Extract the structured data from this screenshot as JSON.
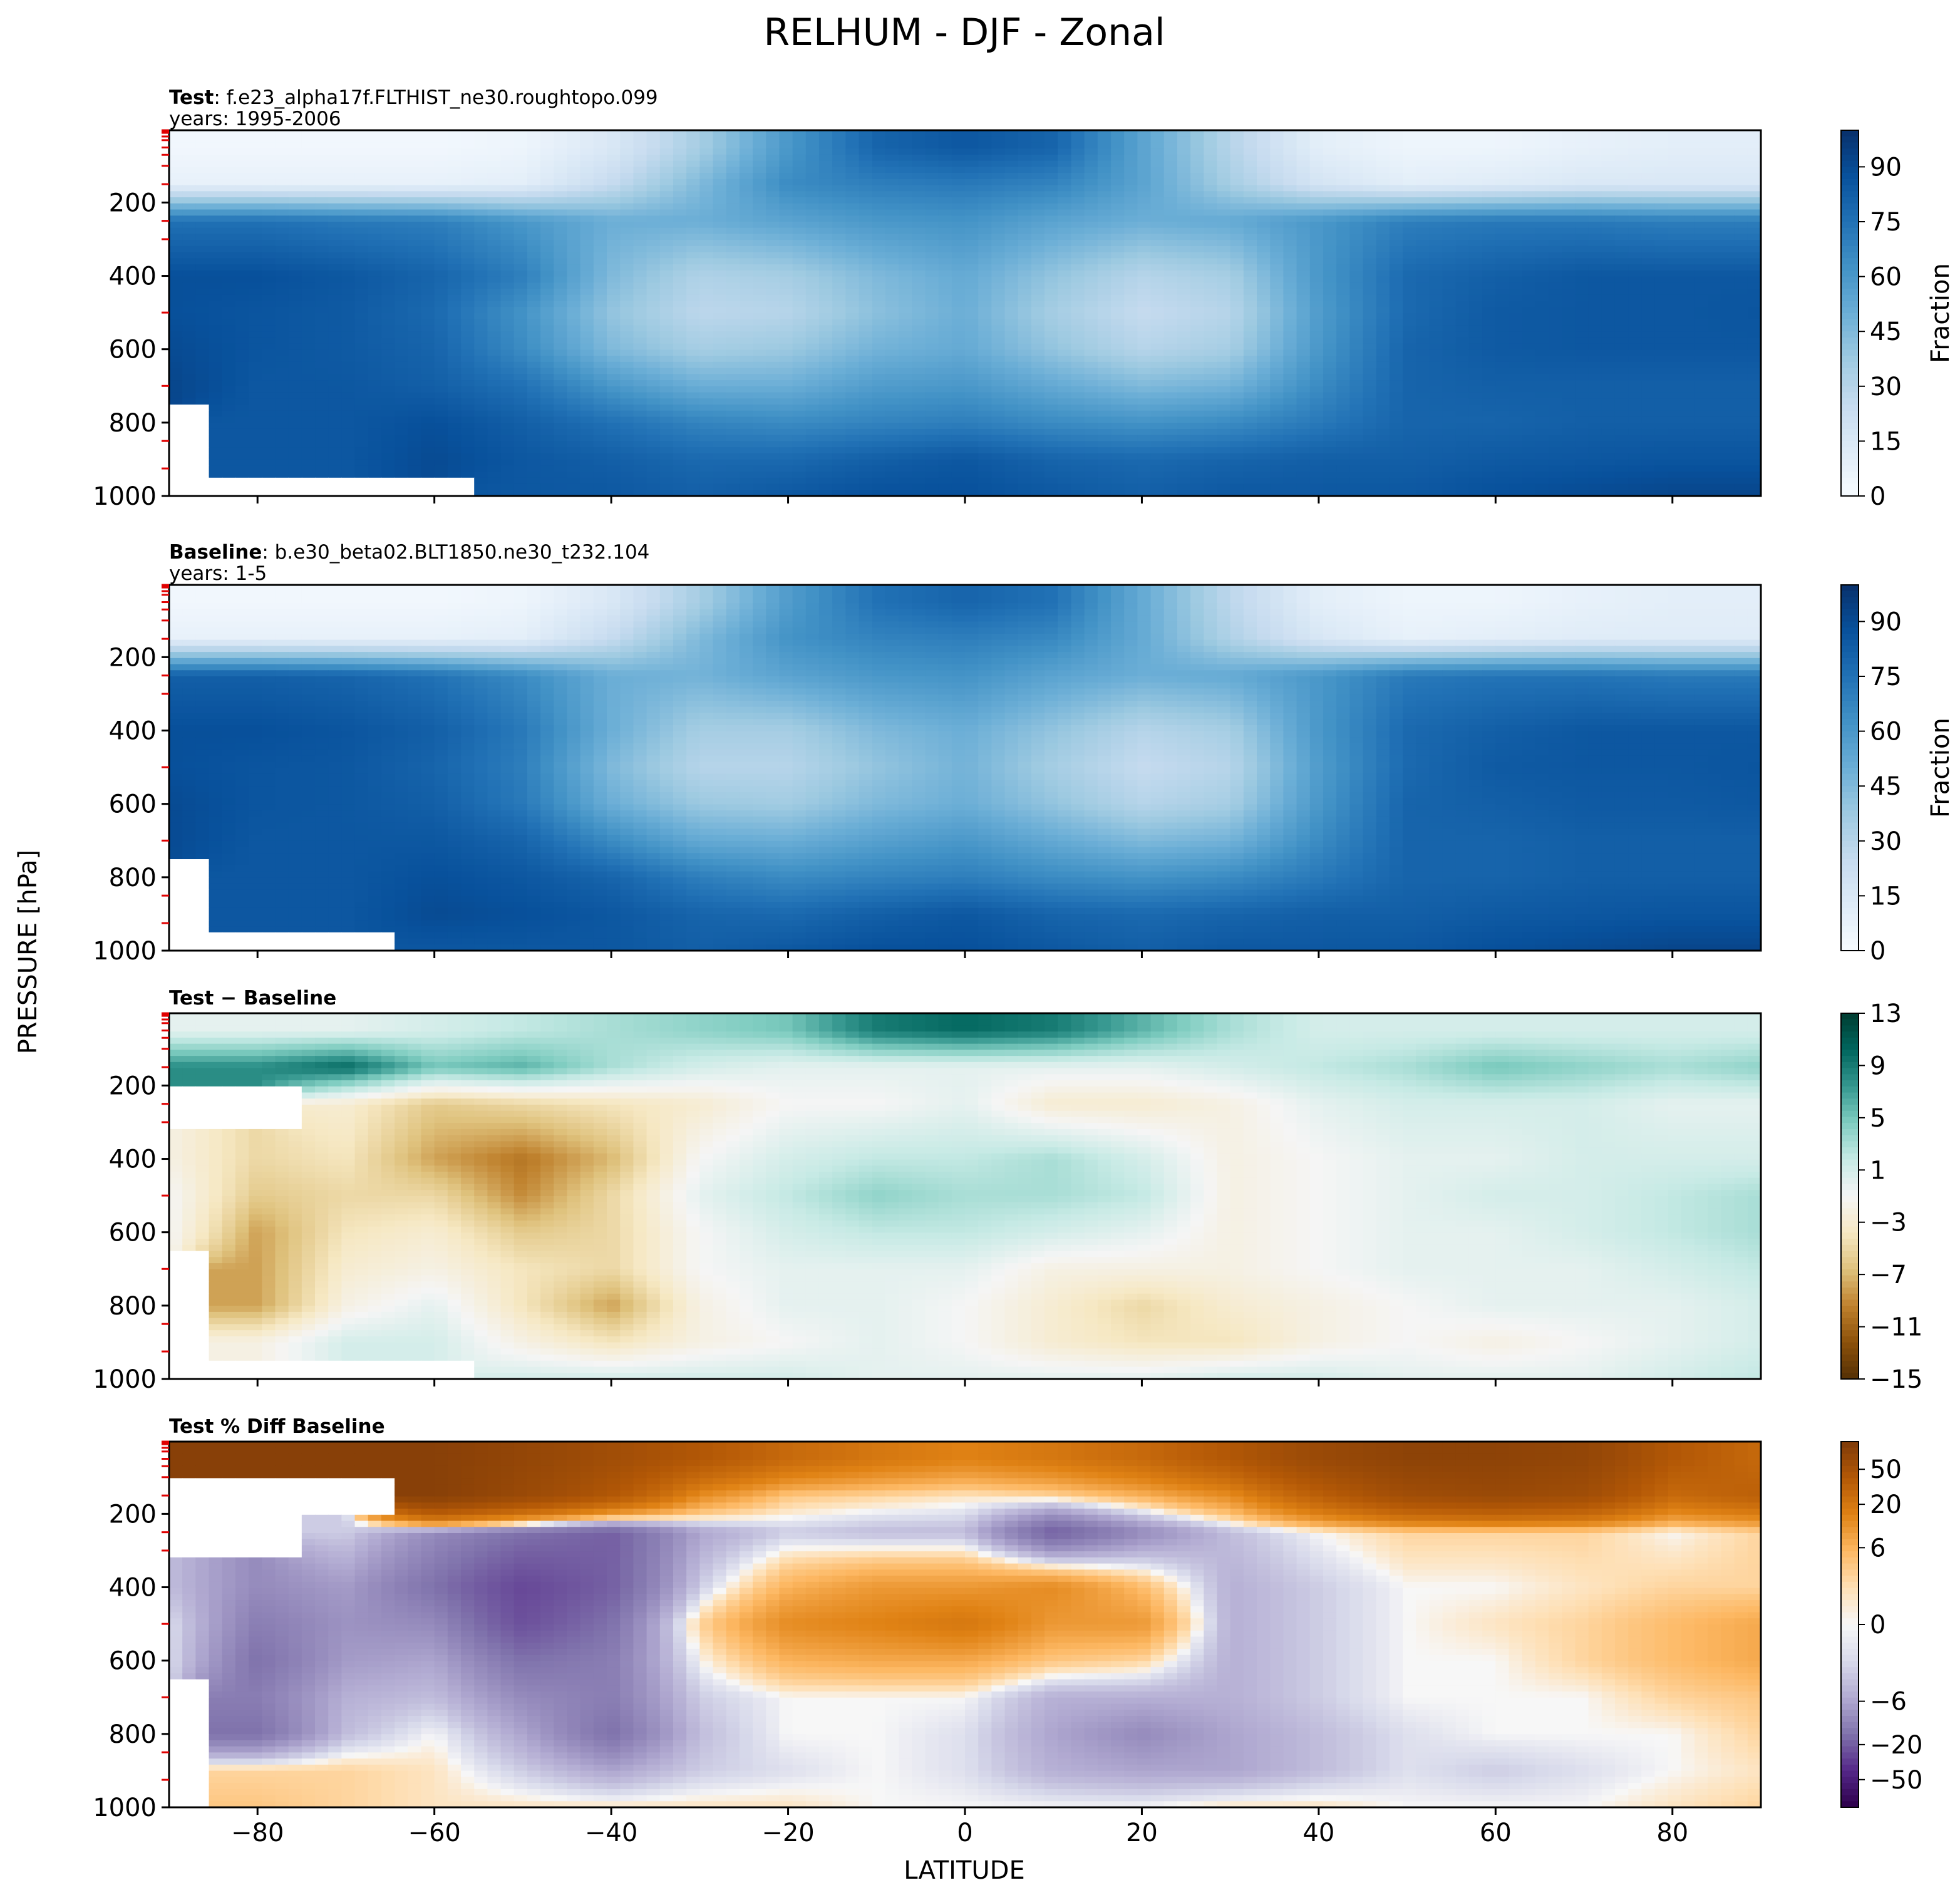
{
  "figure": {
    "title": "RELHUM - DJF - Zonal",
    "ylabel": "PRESSURE [hPa]",
    "xlabel": "LATITUDE"
  },
  "colors": {
    "relhum_cmap": [
      "#f7fbff",
      "#deebf7",
      "#c6dbef",
      "#9ecae1",
      "#6baed6",
      "#4292c6",
      "#2171b5",
      "#08519c",
      "#08306b"
    ],
    "diff_cmap": [
      "#543005",
      "#8c510a",
      "#bf812d",
      "#dfc27d",
      "#f6e8c3",
      "#f5f5f5",
      "#c7eae5",
      "#80cdc1",
      "#35978f",
      "#01665e",
      "#003c30"
    ],
    "pctdiff_cmap": [
      "#2d004b",
      "#542788",
      "#8073ac",
      "#b2abd2",
      "#d8daeb",
      "#f7f7f7",
      "#fee0b6",
      "#fdb863",
      "#e08214",
      "#b35806",
      "#7f3b08"
    ],
    "missing": "#ffffff"
  },
  "chart_data": [
    {
      "type": "heatmap",
      "panel": "test",
      "label_bold": "Test",
      "label_rest": ": f.e23_alpha17f.FLTHIST_ne30.roughtopo.099",
      "years": "years: 1995-2006",
      "xlabel": "",
      "ylabel": "PRESSURE [hPa]",
      "xlim": [
        -90,
        90
      ],
      "ylim": [
        1000,
        3
      ],
      "xticks": [
        -80,
        -60,
        -40,
        -20,
        0,
        20,
        40,
        60,
        80
      ],
      "yticks": [
        200,
        400,
        600,
        800,
        1000
      ],
      "colorbar": {
        "label": "Fraction",
        "ticks": [
          "0",
          "15",
          "30",
          "45",
          "60",
          "75",
          "90"
        ],
        "range": [
          0,
          100
        ]
      },
      "x": [
        -90,
        -80,
        -70,
        -60,
        -50,
        -40,
        -30,
        -20,
        -10,
        0,
        10,
        20,
        30,
        40,
        50,
        60,
        70,
        80,
        90
      ],
      "y": [
        50,
        150,
        250,
        400,
        500,
        600,
        700,
        800,
        900,
        1000
      ],
      "z": [
        [
          3,
          3,
          3,
          3,
          5,
          15,
          35,
          60,
          80,
          85,
          80,
          55,
          30,
          10,
          5,
          5,
          8,
          10,
          10
        ],
        [
          8,
          8,
          8,
          8,
          10,
          25,
          45,
          65,
          70,
          72,
          68,
          55,
          35,
          18,
          10,
          12,
          15,
          15,
          15
        ],
        [
          75,
          75,
          72,
          70,
          60,
          50,
          50,
          55,
          60,
          62,
          55,
          50,
          52,
          60,
          70,
          72,
          72,
          70,
          70
        ],
        [
          88,
          88,
          85,
          80,
          70,
          45,
          32,
          35,
          45,
          52,
          40,
          30,
          35,
          60,
          78,
          82,
          85,
          85,
          85
        ],
        [
          88,
          86,
          84,
          78,
          62,
          40,
          28,
          30,
          42,
          50,
          35,
          25,
          30,
          58,
          78,
          84,
          85,
          85,
          86
        ],
        [
          90,
          86,
          84,
          80,
          65,
          45,
          35,
          38,
          48,
          52,
          40,
          30,
          35,
          60,
          80,
          84,
          85,
          85,
          85
        ],
        [
          92,
          85,
          85,
          82,
          75,
          60,
          50,
          50,
          58,
          60,
          52,
          45,
          48,
          65,
          80,
          82,
          82,
          82,
          82
        ],
        [
          null,
          85,
          85,
          88,
          82,
          75,
          68,
          65,
          68,
          70,
          65,
          62,
          65,
          72,
          80,
          80,
          82,
          82,
          82
        ],
        [
          null,
          85,
          85,
          90,
          85,
          82,
          78,
          78,
          82,
          85,
          80,
          78,
          80,
          82,
          82,
          84,
          85,
          86,
          86
        ],
        [
          null,
          null,
          null,
          null,
          85,
          85,
          82,
          85,
          88,
          88,
          85,
          82,
          85,
          85,
          85,
          88,
          90,
          92,
          92
        ]
      ]
    },
    {
      "type": "heatmap",
      "panel": "baseline",
      "label_bold": "Baseline",
      "label_rest": ": b.e30_beta02.BLT1850.ne30_t232.104",
      "years": "years: 1-5",
      "xlabel": "",
      "ylabel": "PRESSURE [hPa]",
      "xlim": [
        -90,
        90
      ],
      "ylim": [
        1000,
        3
      ],
      "xticks": [
        -80,
        -60,
        -40,
        -20,
        0,
        20,
        40,
        60,
        80
      ],
      "yticks": [
        200,
        400,
        600,
        800,
        1000
      ],
      "colorbar": {
        "label": "Fraction",
        "ticks": [
          "0",
          "15",
          "30",
          "45",
          "60",
          "75",
          "90"
        ],
        "range": [
          0,
          100
        ]
      },
      "x": [
        -90,
        -80,
        -70,
        -60,
        -50,
        -40,
        -30,
        -20,
        -10,
        0,
        10,
        20,
        30,
        40,
        50,
        60,
        70,
        80,
        90
      ],
      "y": [
        50,
        150,
        250,
        400,
        500,
        600,
        700,
        800,
        900,
        1000
      ],
      "z": [
        [
          3,
          3,
          3,
          3,
          5,
          15,
          35,
          58,
          75,
          80,
          75,
          52,
          28,
          10,
          5,
          5,
          8,
          10,
          10
        ],
        [
          8,
          8,
          8,
          8,
          10,
          25,
          45,
          62,
          68,
          70,
          66,
          52,
          32,
          16,
          8,
          10,
          12,
          12,
          12
        ],
        [
          82,
          82,
          80,
          75,
          65,
          50,
          48,
          55,
          60,
          62,
          55,
          50,
          52,
          60,
          72,
          74,
          74,
          72,
          72
        ],
        [
          88,
          88,
          86,
          82,
          72,
          50,
          35,
          35,
          45,
          50,
          40,
          30,
          35,
          60,
          78,
          82,
          85,
          85,
          85
        ],
        [
          88,
          86,
          85,
          80,
          70,
          45,
          30,
          30,
          40,
          48,
          35,
          25,
          30,
          58,
          78,
          84,
          85,
          85,
          86
        ],
        [
          90,
          86,
          85,
          82,
          72,
          50,
          38,
          36,
          45,
          50,
          40,
          30,
          35,
          60,
          80,
          82,
          84,
          84,
          85
        ],
        [
          90,
          85,
          85,
          85,
          80,
          65,
          52,
          50,
          56,
          60,
          52,
          45,
          48,
          65,
          80,
          80,
          82,
          82,
          82
        ],
        [
          null,
          85,
          85,
          88,
          85,
          80,
          70,
          65,
          68,
          70,
          65,
          62,
          65,
          72,
          80,
          80,
          82,
          82,
          82
        ],
        [
          null,
          85,
          85,
          90,
          88,
          85,
          80,
          78,
          82,
          85,
          80,
          78,
          80,
          82,
          82,
          84,
          85,
          86,
          86
        ],
        [
          null,
          null,
          null,
          85,
          85,
          85,
          82,
          85,
          88,
          88,
          85,
          82,
          85,
          85,
          85,
          88,
          90,
          92,
          92
        ]
      ]
    },
    {
      "type": "heatmap",
      "panel": "diff",
      "label_bold": "Test − Baseline",
      "label_rest": "",
      "years": "",
      "xlabel": "",
      "ylabel": "PRESSURE [hPa]",
      "xlim": [
        -90,
        90
      ],
      "ylim": [
        1000,
        3
      ],
      "xticks": [
        -80,
        -60,
        -40,
        -20,
        0,
        20,
        40,
        60,
        80
      ],
      "yticks": [
        200,
        400,
        600,
        800,
        1000
      ],
      "colorbar": {
        "label": "",
        "ticks": [
          "−15",
          "−11",
          "−7",
          "−3",
          "1",
          "5",
          "9",
          "13"
        ],
        "range": [
          -15,
          13
        ]
      },
      "x": [
        -90,
        -80,
        -70,
        -60,
        -50,
        -40,
        -30,
        -20,
        -10,
        0,
        10,
        20,
        30,
        40,
        50,
        60,
        70,
        80,
        90
      ],
      "y": [
        50,
        150,
        250,
        400,
        500,
        600,
        700,
        800,
        900,
        1000
      ],
      "z": [
        [
          0,
          0,
          0,
          1,
          2,
          3,
          4,
          5,
          9,
          10,
          9,
          6,
          3,
          1,
          1,
          1,
          1,
          1,
          1
        ],
        [
          8,
          8,
          10,
          5,
          6,
          3,
          1,
          0,
          0,
          0,
          0,
          0,
          1,
          2,
          3,
          5,
          4,
          3,
          4
        ],
        [
          null,
          null,
          -3,
          -6,
          -5,
          -4,
          -3,
          -1,
          -1,
          0,
          -3,
          -3,
          -2,
          0,
          1,
          1,
          1,
          0,
          0
        ],
        [
          -2,
          -5,
          -4,
          -8,
          -10,
          -7,
          -1,
          1,
          2,
          2,
          3,
          1,
          -2,
          -1,
          0,
          0,
          1,
          1,
          1
        ],
        [
          -1,
          -6,
          -5,
          -5,
          -9,
          -5,
          0,
          2,
          4,
          3,
          3,
          2,
          -2,
          -1,
          0,
          1,
          1,
          2,
          3
        ],
        [
          -1,
          -8,
          -4,
          -3,
          -6,
          -5,
          -1,
          1,
          2,
          2,
          1,
          0,
          -2,
          -1,
          0,
          0,
          1,
          2,
          3
        ],
        [
          null,
          -8,
          -3,
          -2,
          -4,
          -5,
          -1,
          0,
          0,
          0,
          -2,
          -2,
          -2,
          -1,
          0,
          0,
          0,
          1,
          2
        ],
        [
          null,
          -8,
          -2,
          0,
          -4,
          -8,
          -2,
          0,
          0,
          -1,
          -3,
          -5,
          -3,
          -2,
          -1,
          0,
          0,
          0,
          1
        ],
        [
          null,
          -2,
          1,
          1,
          -2,
          -4,
          -2,
          -1,
          0,
          -1,
          -3,
          -4,
          -4,
          -2,
          -1,
          -2,
          -1,
          0,
          1
        ],
        [
          null,
          null,
          null,
          null,
          1,
          1,
          1,
          1,
          0,
          0,
          0,
          0,
          1,
          1,
          0,
          0,
          0,
          1,
          2
        ]
      ]
    },
    {
      "type": "heatmap",
      "panel": "pctdiff",
      "label_bold": "Test % Diff Baseline",
      "label_rest": "",
      "years": "",
      "xlabel": "LATITUDE",
      "ylabel": "PRESSURE [hPa]",
      "xlim": [
        -90,
        90
      ],
      "ylim": [
        1000,
        3
      ],
      "xticks": [
        -80,
        -60,
        -40,
        -20,
        0,
        20,
        40,
        60,
        80
      ],
      "yticks": [
        200,
        400,
        600,
        800,
        1000
      ],
      "colorbar": {
        "label": "",
        "ticks": [
          "−50",
          "−20",
          "−6",
          "0",
          "6",
          "20",
          "50"
        ],
        "range": [
          -70,
          70
        ]
      },
      "x": [
        -90,
        -80,
        -70,
        -60,
        -50,
        -40,
        -30,
        -20,
        -10,
        0,
        10,
        20,
        30,
        40,
        50,
        60,
        70,
        80,
        90
      ],
      "y": [
        50,
        150,
        250,
        400,
        500,
        600,
        700,
        800,
        900,
        1000
      ],
      "z": [
        [
          60,
          60,
          60,
          60,
          50,
          40,
          30,
          20,
          15,
          12,
          15,
          20,
          30,
          45,
          55,
          55,
          50,
          30,
          20
        ],
        [
          null,
          null,
          null,
          60,
          45,
          30,
          10,
          3,
          2,
          1,
          2,
          5,
          10,
          25,
          40,
          45,
          40,
          20,
          25
        ],
        [
          null,
          null,
          -2,
          -8,
          -12,
          -15,
          -5,
          -2,
          -3,
          -3,
          -15,
          -8,
          -3,
          0,
          2,
          2,
          2,
          0,
          2
        ],
        [
          -3,
          -8,
          -6,
          -12,
          -20,
          -15,
          -2,
          5,
          8,
          8,
          10,
          4,
          -4,
          -2,
          0,
          0,
          1,
          2,
          2
        ],
        [
          -1,
          -10,
          -7,
          -8,
          -18,
          -12,
          2,
          10,
          12,
          15,
          8,
          8,
          -4,
          -2,
          0,
          1,
          2,
          4,
          6
        ],
        [
          -1,
          -12,
          -6,
          -5,
          -12,
          -10,
          0,
          5,
          6,
          6,
          3,
          2,
          -4,
          -2,
          0,
          0,
          2,
          4,
          6
        ],
        [
          null,
          -10,
          -4,
          -3,
          -8,
          -10,
          -2,
          0,
          0,
          0,
          -4,
          -4,
          -4,
          -2,
          0,
          0,
          0,
          2,
          3
        ],
        [
          null,
          -12,
          -3,
          0,
          -5,
          -12,
          -3,
          0,
          0,
          -1,
          -5,
          -8,
          -5,
          -3,
          -1,
          0,
          0,
          0,
          2
        ],
        [
          null,
          2,
          2,
          1,
          -2,
          -5,
          -2,
          -1,
          0,
          -1,
          -4,
          -5,
          -5,
          -3,
          -1,
          -2,
          -1,
          0,
          1
        ],
        [
          null,
          3,
          2,
          1,
          1,
          1,
          1,
          1,
          0,
          0,
          0,
          0,
          1,
          1,
          0,
          0,
          0,
          1,
          2
        ]
      ]
    }
  ]
}
